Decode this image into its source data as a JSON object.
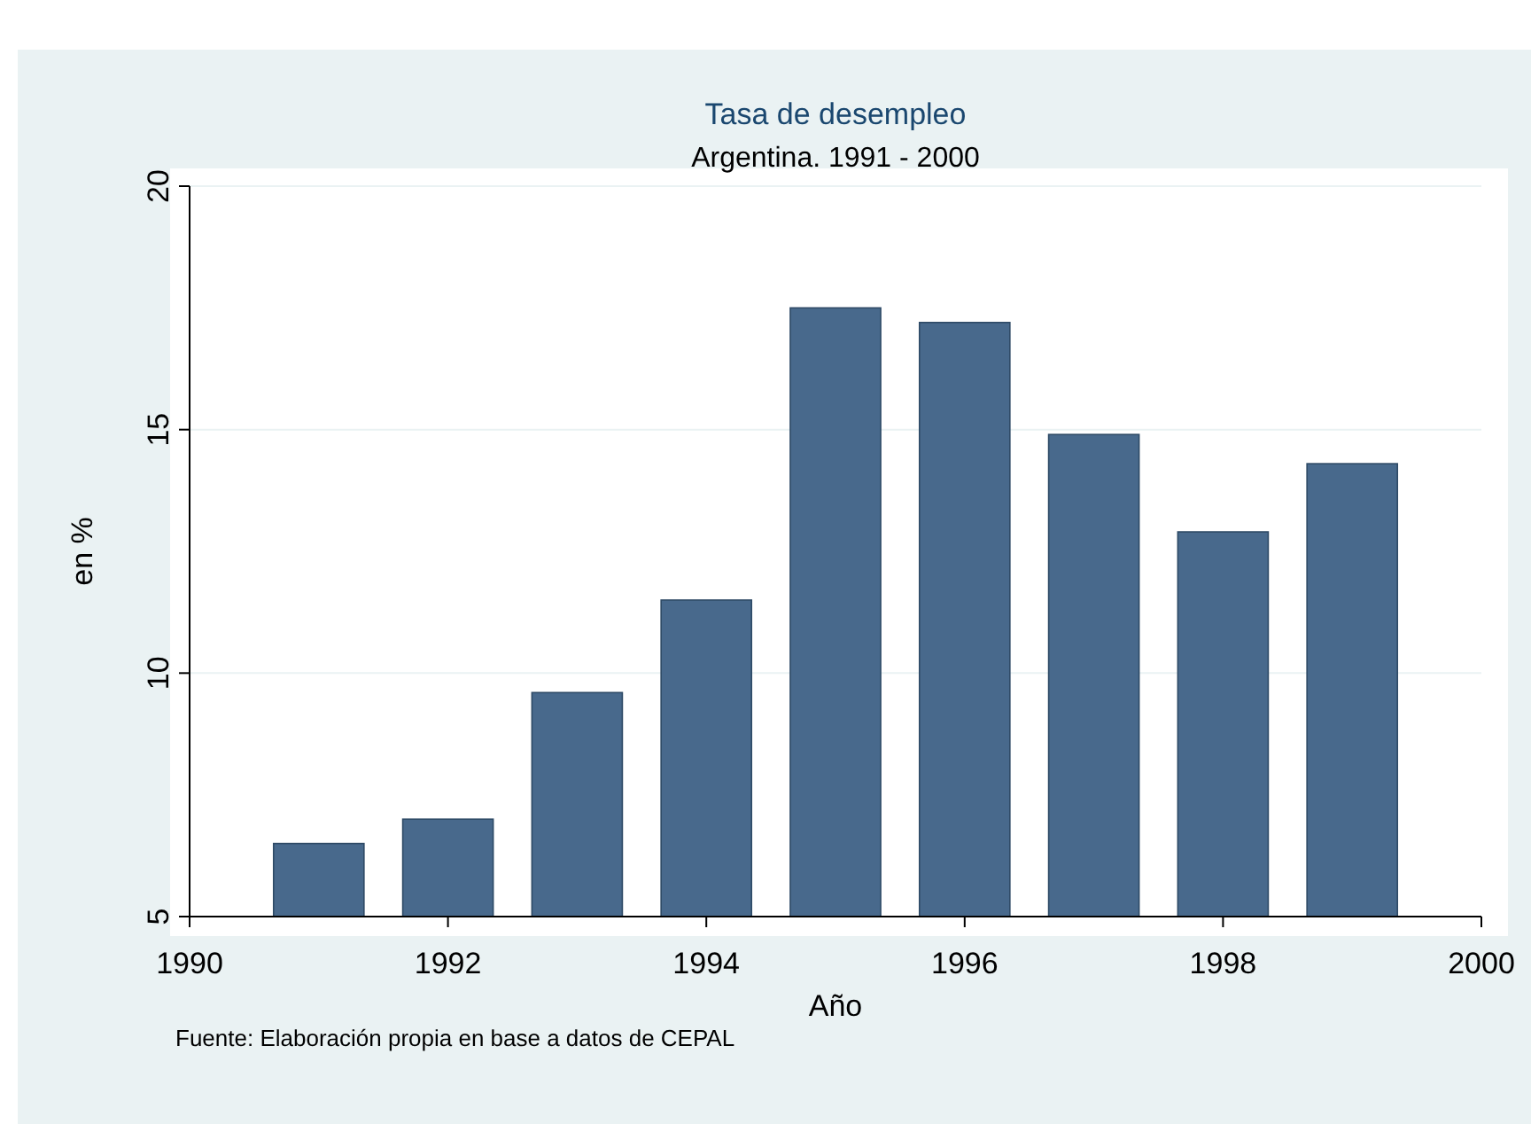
{
  "chart_data": {
    "type": "bar",
    "title": "Tasa de desempleo",
    "subtitle": "Argentina. 1991 - 2000",
    "xlabel": "Año",
    "ylabel": "en %",
    "x": [
      1991,
      1992,
      1993,
      1994,
      1995,
      1996,
      1997,
      1998,
      1999
    ],
    "values": [
      6.5,
      7.0,
      9.6,
      11.5,
      17.5,
      17.2,
      14.9,
      12.9,
      14.3
    ],
    "color": "#48698c",
    "xlim": [
      1990,
      2000
    ],
    "xticks": [
      1990,
      1992,
      1994,
      1996,
      1998,
      2000
    ],
    "ylim": [
      5,
      20
    ],
    "yticks": [
      5,
      10,
      15,
      20
    ],
    "grid": "y",
    "annotations": [
      "Fuente: Elaboración propia en base a datos de CEPAL"
    ]
  }
}
